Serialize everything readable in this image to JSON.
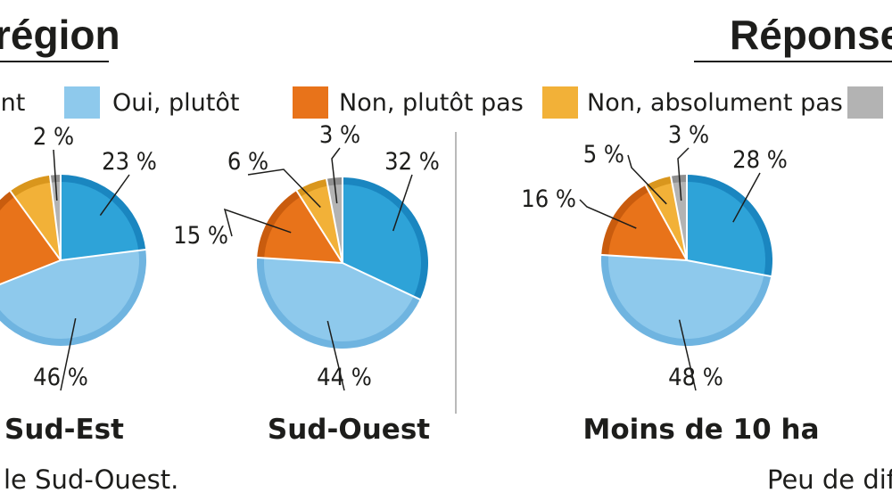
{
  "header": {
    "left_title": "région",
    "right_title": "Réponses"
  },
  "legend": [
    {
      "label": "ent",
      "color": "#2ea3d8"
    },
    {
      "label": "Oui, plutôt",
      "color": "#8ec9ec"
    },
    {
      "label": "Non, plutôt pas",
      "color": "#e8731a"
    },
    {
      "label": "Non, absolument pas",
      "color": "#f2b138"
    },
    {
      "label": "",
      "color": "#b3b3b3"
    }
  ],
  "chart_data": [
    {
      "type": "pie",
      "title": "Sud-Est",
      "categories": [
        "",
        "Oui, plutôt",
        "Non, plutôt pas",
        "Non, absolument pas",
        ""
      ],
      "values": [
        23,
        46,
        21,
        8,
        2
      ],
      "labels": [
        "23 %",
        "46 %",
        "",
        "",
        "2 %"
      ]
    },
    {
      "type": "pie",
      "title": "Sud-Ouest",
      "categories": [
        "",
        "Oui, plutôt",
        "Non, plutôt pas",
        "Non, absolument pas",
        ""
      ],
      "values": [
        32,
        44,
        15,
        6,
        3
      ],
      "labels": [
        "32 %",
        "44 %",
        "15 %",
        "6 %",
        "3 %"
      ]
    },
    {
      "type": "pie",
      "title": "Moins de 10 ha",
      "categories": [
        "",
        "Oui, plutôt",
        "Non, plutôt pas",
        "Non, absolument pas",
        ""
      ],
      "values": [
        28,
        48,
        16,
        5,
        3
      ],
      "labels": [
        "28 %",
        "48 %",
        "16 %",
        "5 %",
        "3 %"
      ]
    }
  ],
  "captions": {
    "left": "le Sud-Ouest.",
    "right": "Peu de dif"
  }
}
